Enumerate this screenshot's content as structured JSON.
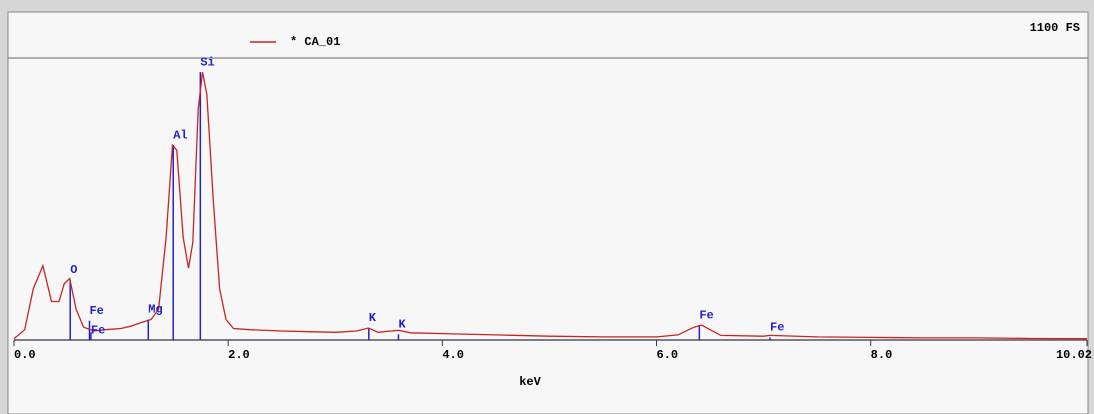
{
  "chart_data": {
    "type": "spectrum",
    "legend_label": "* CA_01",
    "full_scale_label": "1100 FS",
    "x_label": "keV",
    "color": "#cc2222",
    "marker_color": "#2222cc",
    "xlim": [
      0,
      10.02
    ],
    "ylim": [
      0,
      1100
    ],
    "xticks": [
      {
        "value": 0,
        "label": "0.0"
      },
      {
        "value": 2,
        "label": "2.0"
      },
      {
        "value": 4,
        "label": "4.0"
      },
      {
        "value": 6,
        "label": "6.0"
      },
      {
        "value": 8,
        "label": "8.0"
      },
      10.02
    ],
    "x": [
      0.0,
      0.1,
      0.18,
      0.27,
      0.35,
      0.42,
      0.47,
      0.52,
      0.58,
      0.65,
      0.75,
      0.85,
      1.0,
      1.1,
      1.2,
      1.28,
      1.35,
      1.42,
      1.48,
      1.52,
      1.58,
      1.63,
      1.67,
      1.72,
      1.76,
      1.8,
      1.86,
      1.92,
      1.98,
      2.05,
      2.2,
      2.5,
      2.8,
      3.0,
      3.2,
      3.31,
      3.4,
      3.59,
      3.7,
      4.0,
      4.5,
      5.0,
      5.5,
      6.0,
      6.2,
      6.35,
      6.42,
      6.5,
      6.6,
      7.0,
      7.06,
      7.5,
      8.0,
      8.5,
      9.0,
      9.5,
      10.02
    ],
    "values": [
      5,
      40,
      200,
      290,
      150,
      150,
      220,
      240,
      120,
      50,
      35,
      40,
      45,
      55,
      70,
      80,
      120,
      400,
      760,
      740,
      400,
      280,
      380,
      900,
      1045,
      960,
      550,
      200,
      80,
      45,
      40,
      35,
      32,
      30,
      35,
      47,
      30,
      38,
      28,
      25,
      20,
      15,
      12,
      12,
      20,
      50,
      58,
      40,
      18,
      15,
      18,
      12,
      10,
      8,
      8,
      6,
      5
    ],
    "markers": [
      {
        "label": "O",
        "energy": 0.525,
        "height": 235
      },
      {
        "label": "Fe",
        "energy": 0.705,
        "height": 75
      },
      {
        "label": "Fe",
        "energy": 0.718,
        "height": 30
      },
      {
        "label": "Mg",
        "energy": 1.254,
        "height": 80
      },
      {
        "label": "Al",
        "energy": 1.487,
        "height": 760
      },
      {
        "label": "Si",
        "energy": 1.74,
        "height": 1045
      },
      {
        "label": "K",
        "energy": 3.313,
        "height": 47
      },
      {
        "label": "K",
        "energy": 3.59,
        "height": 22
      },
      {
        "label": "Fe",
        "energy": 6.4,
        "height": 58
      },
      {
        "label": "Fe",
        "energy": 7.06,
        "height": 10
      }
    ]
  }
}
